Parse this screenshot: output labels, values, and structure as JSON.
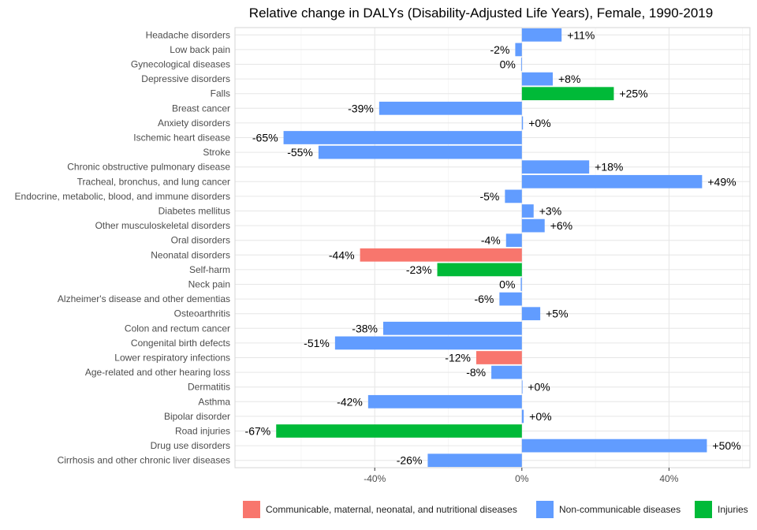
{
  "chart_data": {
    "type": "bar",
    "orientation": "horizontal",
    "title": "Relative change in DALYs (Disability-Adjusted Life Years), Female, 1990-2019",
    "xlim": [
      -78,
      62
    ],
    "x_ticks": [
      -40,
      0,
      40
    ],
    "x_tick_labels": [
      "-40%",
      "0%",
      "40%"
    ],
    "grid": true,
    "legend_position": "bottom",
    "groups": [
      {
        "name": "Communicable, maternal, neonatal, and nutritional diseases",
        "color": "#F8766D"
      },
      {
        "name": "Non-communicable diseases",
        "color": "#619CFF"
      },
      {
        "name": "Injuries",
        "color": "#00BA38"
      }
    ],
    "bars": [
      {
        "category": "Headache disorders",
        "value": 10.8,
        "label": "+11%",
        "group": 1
      },
      {
        "category": "Low back pain",
        "value": -1.8,
        "label": "-2%",
        "group": 1
      },
      {
        "category": "Gynecological diseases",
        "value": -0.2,
        "label": "0%",
        "group": 1
      },
      {
        "category": "Depressive disorders",
        "value": 8.4,
        "label": "+8%",
        "group": 1
      },
      {
        "category": "Falls",
        "value": 25.0,
        "label": "+25%",
        "group": 2
      },
      {
        "category": "Breast cancer",
        "value": -38.8,
        "label": "-39%",
        "group": 1
      },
      {
        "category": "Anxiety disorders",
        "value": 0.3,
        "label": "+0%",
        "group": 1
      },
      {
        "category": "Ischemic heart disease",
        "value": -64.8,
        "label": "-65%",
        "group": 1
      },
      {
        "category": "Stroke",
        "value": -55.3,
        "label": "-55%",
        "group": 1
      },
      {
        "category": "Chronic obstructive pulmonary disease",
        "value": 18.3,
        "label": "+18%",
        "group": 1
      },
      {
        "category": "Tracheal, bronchus, and lung cancer",
        "value": 49.0,
        "label": "+49%",
        "group": 1
      },
      {
        "category": "Endocrine, metabolic, blood, and immune disorders",
        "value": -4.6,
        "label": "-5%",
        "group": 1
      },
      {
        "category": "Diabetes mellitus",
        "value": 3.2,
        "label": "+3%",
        "group": 1
      },
      {
        "category": "Other musculoskeletal disorders",
        "value": 6.2,
        "label": "+6%",
        "group": 1
      },
      {
        "category": "Oral disorders",
        "value": -4.3,
        "label": "-4%",
        "group": 1
      },
      {
        "category": "Neonatal disorders",
        "value": -44.0,
        "label": "-44%",
        "group": 0
      },
      {
        "category": "Self-harm",
        "value": -23.0,
        "label": "-23%",
        "group": 2
      },
      {
        "category": "Neck pain",
        "value": -0.3,
        "label": "0%",
        "group": 1
      },
      {
        "category": "Alzheimer's disease and other dementias",
        "value": -6.1,
        "label": "-6%",
        "group": 1
      },
      {
        "category": "Osteoarthritis",
        "value": 5.0,
        "label": "+5%",
        "group": 1
      },
      {
        "category": "Colon and rectum cancer",
        "value": -37.7,
        "label": "-38%",
        "group": 1
      },
      {
        "category": "Congenital birth defects",
        "value": -50.8,
        "label": "-51%",
        "group": 1
      },
      {
        "category": "Lower respiratory infections",
        "value": -12.4,
        "label": "-12%",
        "group": 0
      },
      {
        "category": "Age-related and other hearing loss",
        "value": -8.3,
        "label": "-8%",
        "group": 1
      },
      {
        "category": "Dermatitis",
        "value": 0.1,
        "label": "+0%",
        "group": 1
      },
      {
        "category": "Asthma",
        "value": -41.8,
        "label": "-42%",
        "group": 1
      },
      {
        "category": "Bipolar disorder",
        "value": 0.5,
        "label": "+0%",
        "group": 1
      },
      {
        "category": "Road injuries",
        "value": -66.8,
        "label": "-67%",
        "group": 2
      },
      {
        "category": "Drug use disorders",
        "value": 50.3,
        "label": "+50%",
        "group": 1
      },
      {
        "category": "Cirrhosis and other chronic liver diseases",
        "value": -25.6,
        "label": "-26%",
        "group": 1
      }
    ]
  }
}
